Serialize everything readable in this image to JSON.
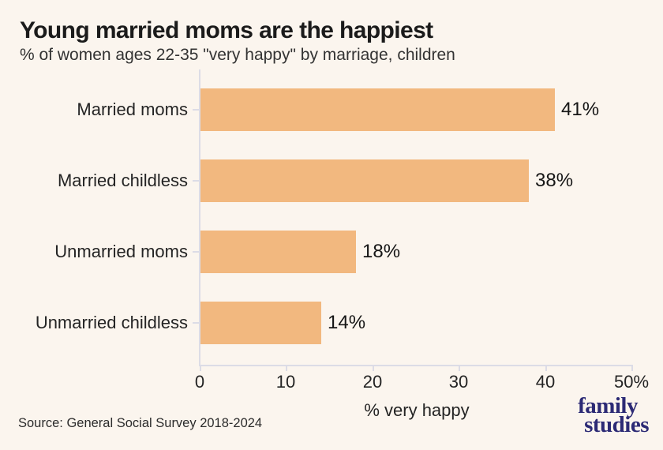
{
  "header": {
    "title": "Young married moms are the happiest",
    "subtitle": "% of women ages 22-35 \"very happy\" by marriage, children"
  },
  "footer": {
    "source": "Source: General Social Survey 2018-2024"
  },
  "logo": {
    "line1": "family",
    "line2": "studies"
  },
  "colors": {
    "background": "#fbf5ee",
    "bar": "#f2b87f",
    "axis": "#dcdce6",
    "title_text": "#1b1b1b",
    "logo": "#2c2a75"
  },
  "chart_data": {
    "type": "bar",
    "orientation": "horizontal",
    "title": "Young married moms are the happiest",
    "subtitle": "% of women ages 22-35 \"very happy\" by marriage, children",
    "categories": [
      "Married moms",
      "Married childless",
      "Unmarried moms",
      "Unmarried childless"
    ],
    "values": [
      41,
      38,
      18,
      14
    ],
    "value_labels": [
      "41%",
      "38%",
      "18%",
      "14%"
    ],
    "xlabel": "% very happy",
    "ylabel": "",
    "xlim": [
      0,
      50
    ],
    "xticks": [
      0,
      10,
      20,
      30,
      40,
      50
    ],
    "xtick_labels": [
      "0",
      "10",
      "20",
      "30",
      "40",
      "50%"
    ],
    "grid": false,
    "legend": false
  }
}
